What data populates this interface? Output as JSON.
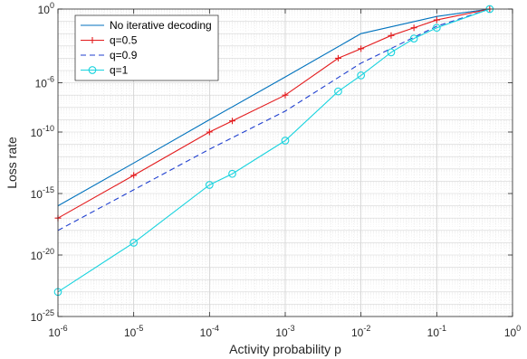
{
  "chart_data": {
    "type": "line",
    "xscale": "log",
    "yscale": "log",
    "xlim": [
      1e-06,
      1
    ],
    "ylim": [
      1e-25,
      1
    ],
    "xlabel": "Activity probability p",
    "ylabel": "Loss rate",
    "grid": true,
    "minor_grid": true,
    "legend_position": "top-left",
    "x_ticks": [
      {
        "base": "10",
        "exp": "-6",
        "value": 1e-06
      },
      {
        "base": "10",
        "exp": "-5",
        "value": 1e-05
      },
      {
        "base": "10",
        "exp": "-4",
        "value": 0.0001
      },
      {
        "base": "10",
        "exp": "-3",
        "value": 0.001
      },
      {
        "base": "10",
        "exp": "-2",
        "value": 0.01
      },
      {
        "base": "10",
        "exp": "-1",
        "value": 0.1
      },
      {
        "base": "10",
        "exp": "0",
        "value": 1
      }
    ],
    "y_ticks": [
      {
        "base": "10",
        "exp": "-25",
        "value": 1e-25
      },
      {
        "base": "10",
        "exp": "-20",
        "value": 1e-20
      },
      {
        "base": "10",
        "exp": "-15",
        "value": 1e-15
      },
      {
        "base": "10",
        "exp": "-10",
        "value": 1e-10
      },
      {
        "base": "10",
        "exp": "-6",
        "value": 1e-06
      },
      {
        "base": "10",
        "exp": "0",
        "value": 1
      }
    ],
    "series": [
      {
        "name": "No iterative decoding",
        "color": "#0072bd",
        "dash": "solid",
        "marker": "none",
        "x": [
          1e-06,
          1e-05,
          0.0001,
          0.001,
          0.01,
          0.1,
          0.5
        ],
        "y": [
          1e-16,
          3e-13,
          1e-09,
          3e-06,
          0.01,
          0.25,
          1
        ]
      },
      {
        "name": "q=0.5",
        "color": "#e31a1c",
        "dash": "solid",
        "marker": "plus",
        "x": [
          1e-06,
          1e-05,
          0.0001,
          0.0002,
          0.001,
          0.005,
          0.01,
          0.025,
          0.05,
          0.1,
          0.5
        ],
        "y": [
          1e-17,
          3e-14,
          1e-10,
          8e-10,
          1e-07,
          0.0001,
          0.0006,
          0.007,
          0.03,
          0.13,
          1
        ]
      },
      {
        "name": "q=0.9",
        "color": "#1f3fcf",
        "dash": "dashed",
        "marker": "none",
        "x": [
          1e-06,
          1e-05,
          0.0001,
          0.001,
          0.01,
          0.1,
          0.5
        ],
        "y": [
          1e-18,
          2e-15,
          4e-12,
          5e-09,
          4e-05,
          0.04,
          1
        ]
      },
      {
        "name": "q=1",
        "color": "#19d3de",
        "dash": "solid",
        "marker": "circle",
        "x": [
          1e-06,
          1e-05,
          0.0001,
          0.0002,
          0.001,
          0.005,
          0.01,
          0.025,
          0.05,
          0.1,
          0.5
        ],
        "y": [
          1e-23,
          1e-19,
          5e-15,
          4e-14,
          2e-11,
          2e-07,
          4e-06,
          0.0003,
          0.004,
          0.03,
          1
        ]
      }
    ]
  }
}
